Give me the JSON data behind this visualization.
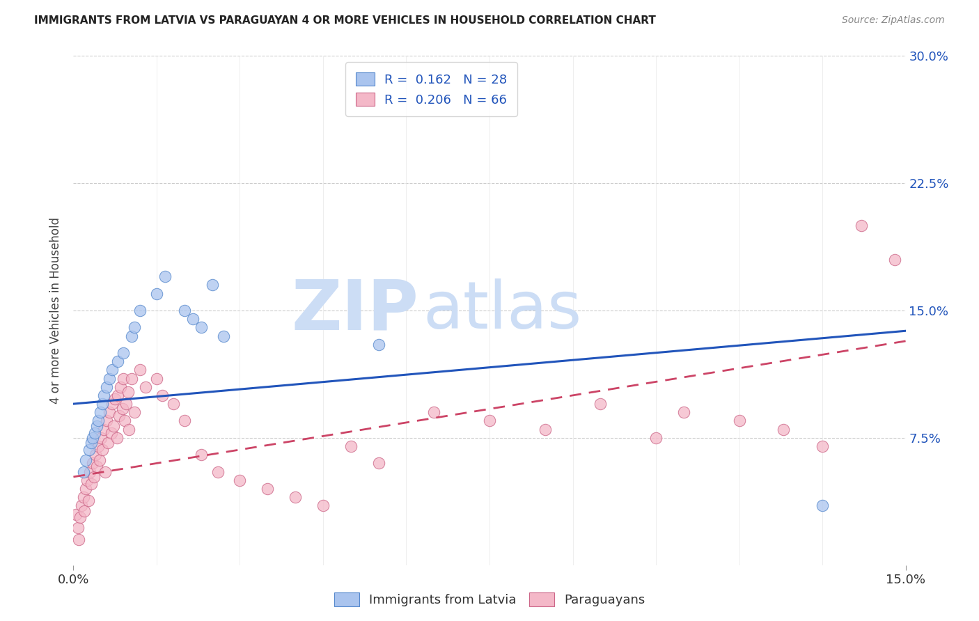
{
  "title": "IMMIGRANTS FROM LATVIA VS PARAGUAYAN 4 OR MORE VEHICLES IN HOUSEHOLD CORRELATION CHART",
  "source": "Source: ZipAtlas.com",
  "ylabel": "4 or more Vehicles in Household",
  "x_min": 0.0,
  "x_max": 15.0,
  "y_min": 0.0,
  "y_max": 30.0,
  "x_tick_labels": [
    "0.0%",
    "15.0%"
  ],
  "y_ticks": [
    7.5,
    15.0,
    22.5,
    30.0
  ],
  "y_tick_labels": [
    "7.5%",
    "15.0%",
    "22.5%",
    "30.0%"
  ],
  "blue_R": 0.162,
  "blue_N": 28,
  "pink_R": 0.206,
  "pink_N": 66,
  "blue_color": "#aac4ee",
  "blue_edge_color": "#5588cc",
  "blue_line_color": "#2255bb",
  "pink_color": "#f4b8c8",
  "pink_edge_color": "#cc6688",
  "pink_line_color": "#cc4466",
  "watermark_zip": "ZIP",
  "watermark_atlas": "atlas",
  "legend_label_blue": "Immigrants from Latvia",
  "legend_label_pink": "Paraguayans",
  "blue_scatter_x": [
    0.18,
    0.22,
    0.28,
    0.32,
    0.35,
    0.38,
    0.42,
    0.45,
    0.48,
    0.52,
    0.55,
    0.6,
    0.65,
    0.7,
    0.8,
    0.9,
    1.05,
    1.1,
    1.2,
    1.5,
    1.65,
    2.0,
    2.15,
    2.3,
    2.5,
    2.7,
    5.5,
    13.5
  ],
  "blue_scatter_y": [
    5.5,
    6.2,
    6.8,
    7.2,
    7.5,
    7.8,
    8.2,
    8.5,
    9.0,
    9.5,
    10.0,
    10.5,
    11.0,
    11.5,
    12.0,
    12.5,
    13.5,
    14.0,
    15.0,
    16.0,
    17.0,
    15.0,
    14.5,
    14.0,
    16.5,
    13.5,
    13.0,
    3.5
  ],
  "pink_scatter_x": [
    0.05,
    0.08,
    0.1,
    0.12,
    0.15,
    0.18,
    0.2,
    0.22,
    0.25,
    0.27,
    0.3,
    0.32,
    0.35,
    0.37,
    0.4,
    0.42,
    0.45,
    0.47,
    0.5,
    0.52,
    0.55,
    0.57,
    0.6,
    0.62,
    0.65,
    0.68,
    0.7,
    0.72,
    0.75,
    0.78,
    0.8,
    0.82,
    0.85,
    0.88,
    0.9,
    0.92,
    0.95,
    0.98,
    1.0,
    1.05,
    1.1,
    1.2,
    1.3,
    1.5,
    1.6,
    1.8,
    2.0,
    2.3,
    2.6,
    3.0,
    3.5,
    4.0,
    4.5,
    5.0,
    5.5,
    6.5,
    7.5,
    8.5,
    9.5,
    10.5,
    11.0,
    12.0,
    12.8,
    13.5,
    14.2,
    14.8
  ],
  "pink_scatter_y": [
    3.0,
    2.2,
    1.5,
    2.8,
    3.5,
    4.0,
    3.2,
    4.5,
    5.0,
    3.8,
    5.5,
    4.8,
    6.0,
    5.2,
    6.5,
    5.8,
    7.0,
    6.2,
    7.5,
    6.8,
    8.0,
    5.5,
    8.5,
    7.2,
    9.0,
    7.8,
    9.5,
    8.2,
    9.8,
    7.5,
    10.0,
    8.8,
    10.5,
    9.2,
    11.0,
    8.5,
    9.5,
    10.2,
    8.0,
    11.0,
    9.0,
    11.5,
    10.5,
    11.0,
    10.0,
    9.5,
    8.5,
    6.5,
    5.5,
    5.0,
    4.5,
    4.0,
    3.5,
    7.0,
    6.0,
    9.0,
    8.5,
    8.0,
    9.5,
    7.5,
    9.0,
    8.5,
    8.0,
    7.0,
    20.0,
    18.0
  ],
  "blue_line_x0": 0.0,
  "blue_line_y0": 9.5,
  "blue_line_x1": 15.0,
  "blue_line_y1": 13.8,
  "pink_line_x0": 0.0,
  "pink_line_y0": 5.2,
  "pink_line_x1": 15.0,
  "pink_line_y1": 13.2
}
